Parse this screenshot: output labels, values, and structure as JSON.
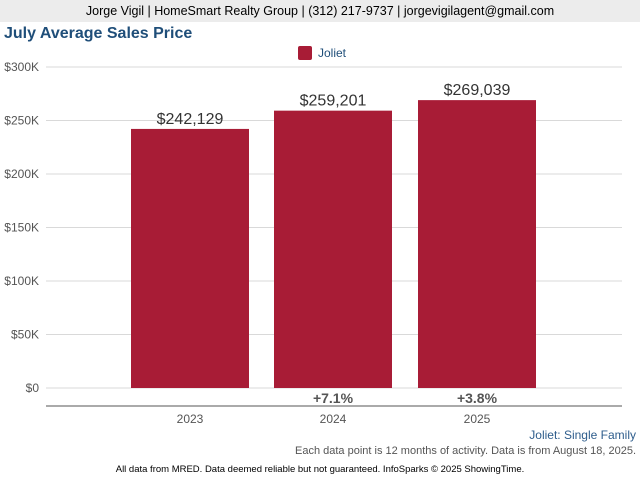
{
  "header": {
    "agent_line": "Jorge Vigil | HomeSmart Realty Group | (312) 217-9737 | jorgevigilagent@gmail.com"
  },
  "chart_data": {
    "type": "bar",
    "title": "July Average Sales Price",
    "categories": [
      "2023",
      "2024",
      "2025"
    ],
    "series": [
      {
        "name": "Joliet",
        "values": [
          242129,
          259201,
          269039
        ],
        "color": "#a81c36"
      }
    ],
    "value_labels": [
      "$242,129",
      "$259,201",
      "$269,039"
    ],
    "change_labels": [
      "",
      "+7.1%",
      "+3.8%"
    ],
    "y_ticks": [
      0,
      50000,
      100000,
      150000,
      200000,
      250000,
      300000
    ],
    "y_tick_labels": [
      "$0",
      "$50K",
      "$100K",
      "$150K",
      "$200K",
      "$250K",
      "$300K"
    ],
    "ylim": [
      0,
      300000
    ],
    "grid": true,
    "legend_position": "top-center"
  },
  "footer": {
    "subtitle": "Joliet: Single Family",
    "note": "Each data point is 12 months of activity. Data is from August 18, 2025.",
    "disclaimer": "All data from MRED. Data deemed reliable but not guaranteed. InfoSparks © 2025 ShowingTime."
  }
}
